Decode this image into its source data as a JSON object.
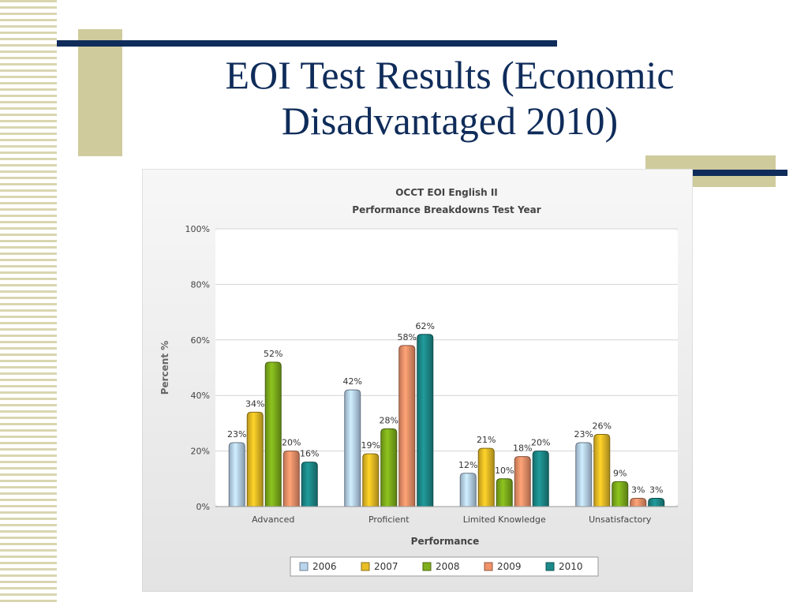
{
  "slide": {
    "title_line1": "EOI Test Results (Economic",
    "title_line2": "Disadvantaged 2010)"
  },
  "colors": {
    "title": "#0f2c5a",
    "accent_bar": "#0f2c5a",
    "deco_block": "#cfcb9c",
    "series": [
      "#b9d5ee",
      "#e8bd25",
      "#7faf1c",
      "#f0926a",
      "#1d8a8a"
    ]
  },
  "chart_data": {
    "type": "bar",
    "title": "OCCT EOI English II",
    "subtitle": "Performance Breakdowns Test Year",
    "xlabel": "Performance",
    "ylabel": "Percent %",
    "ylim": [
      0,
      100
    ],
    "yticks": [
      0,
      20,
      40,
      60,
      80,
      100
    ],
    "ytick_labels": [
      "0%",
      "20%",
      "40%",
      "60%",
      "80%",
      "100%"
    ],
    "grid": true,
    "legend_position": "bottom",
    "categories": [
      "Advanced",
      "Proficient",
      "Limited Knowledge",
      "Unsatisfactory"
    ],
    "series": [
      {
        "name": "2006",
        "values": [
          23,
          42,
          12,
          23
        ],
        "labels": [
          "23%",
          "42%",
          "12%",
          "23%"
        ]
      },
      {
        "name": "2007",
        "values": [
          34,
          19,
          21,
          26
        ],
        "labels": [
          "34%",
          "19%",
          "21%",
          "26%"
        ]
      },
      {
        "name": "2008",
        "values": [
          52,
          28,
          10,
          9
        ],
        "labels": [
          "52%",
          "28%",
          "10%",
          "9%"
        ]
      },
      {
        "name": "2009",
        "values": [
          20,
          58,
          18,
          3
        ],
        "labels": [
          "20%",
          "58%",
          "18%",
          "3%"
        ]
      },
      {
        "name": "2010",
        "values": [
          16,
          62,
          20,
          3
        ],
        "labels": [
          "16%",
          "62%",
          "20%",
          "3%"
        ]
      }
    ]
  }
}
